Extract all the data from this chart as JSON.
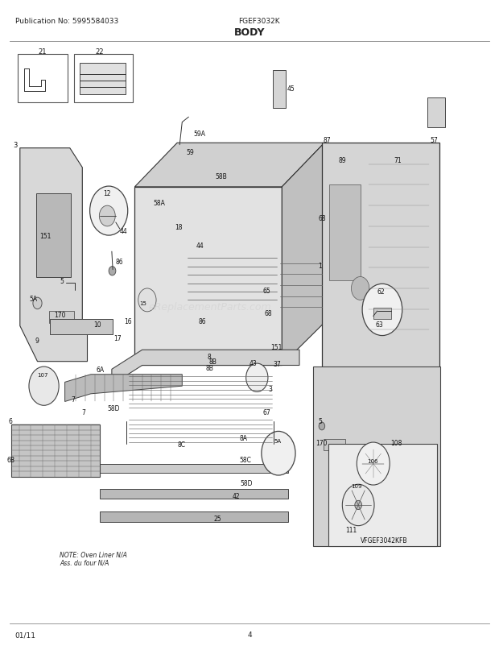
{
  "title": "BODY",
  "pub_no": "Publication No: 5995584033",
  "model": "FGEF3032K",
  "date": "01/11",
  "page": "4",
  "bg_color": "#ffffff",
  "text_color": "#222222",
  "fig_width": 6.2,
  "fig_height": 8.03,
  "dpi": 100,
  "note_text": "NOTE: Oven Liner N/A\nAss. du four N/A"
}
